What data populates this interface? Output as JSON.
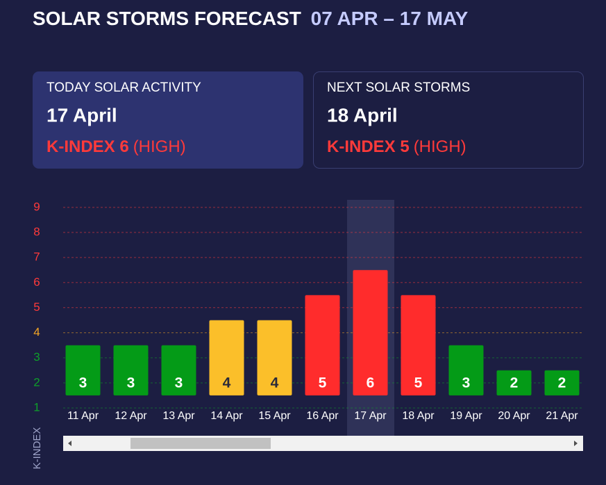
{
  "header": {
    "title": "SOLAR STORMS FORECAST",
    "range": "07 APR – 17 MAY"
  },
  "cards": [
    {
      "label": "TODAY SOLAR ACTIVITY",
      "date": "17 April",
      "kindex": "K-INDEX 6",
      "level": "(HIGH)"
    },
    {
      "label": "NEXT SOLAR STORMS",
      "date": "18 April",
      "kindex": "K-INDEX 5",
      "level": "(HIGH)"
    }
  ],
  "chart_data": {
    "type": "bar",
    "y_label": "K-INDEX",
    "categories": [
      "11 Apr",
      "12 Apr",
      "13 Apr",
      "14 Apr",
      "15 Apr",
      "16 Apr",
      "17 Apr",
      "18 Apr",
      "19 Apr",
      "20 Apr",
      "21 Apr"
    ],
    "values": [
      3,
      3,
      3,
      4,
      4,
      5,
      6,
      5,
      3,
      2,
      2
    ],
    "colors": [
      "#049b17",
      "#049b17",
      "#049b17",
      "#fbbf2a",
      "#fbbf2a",
      "#ff2c2c",
      "#ff2c2c",
      "#ff2c2c",
      "#049b17",
      "#049b17",
      "#049b17"
    ],
    "ylim": [
      1,
      9.3
    ],
    "yticks": [
      1,
      2,
      3,
      4,
      5,
      6,
      7,
      8,
      9
    ],
    "ytick_colors": [
      "#0e9f2a",
      "#0e9f2a",
      "#0e9f2a",
      "#f5a623",
      "#ff3a3a",
      "#ff3a3a",
      "#ff3a3a",
      "#ff3a3a",
      "#ff3a3a"
    ],
    "grid": true,
    "highlight_index": 6
  }
}
